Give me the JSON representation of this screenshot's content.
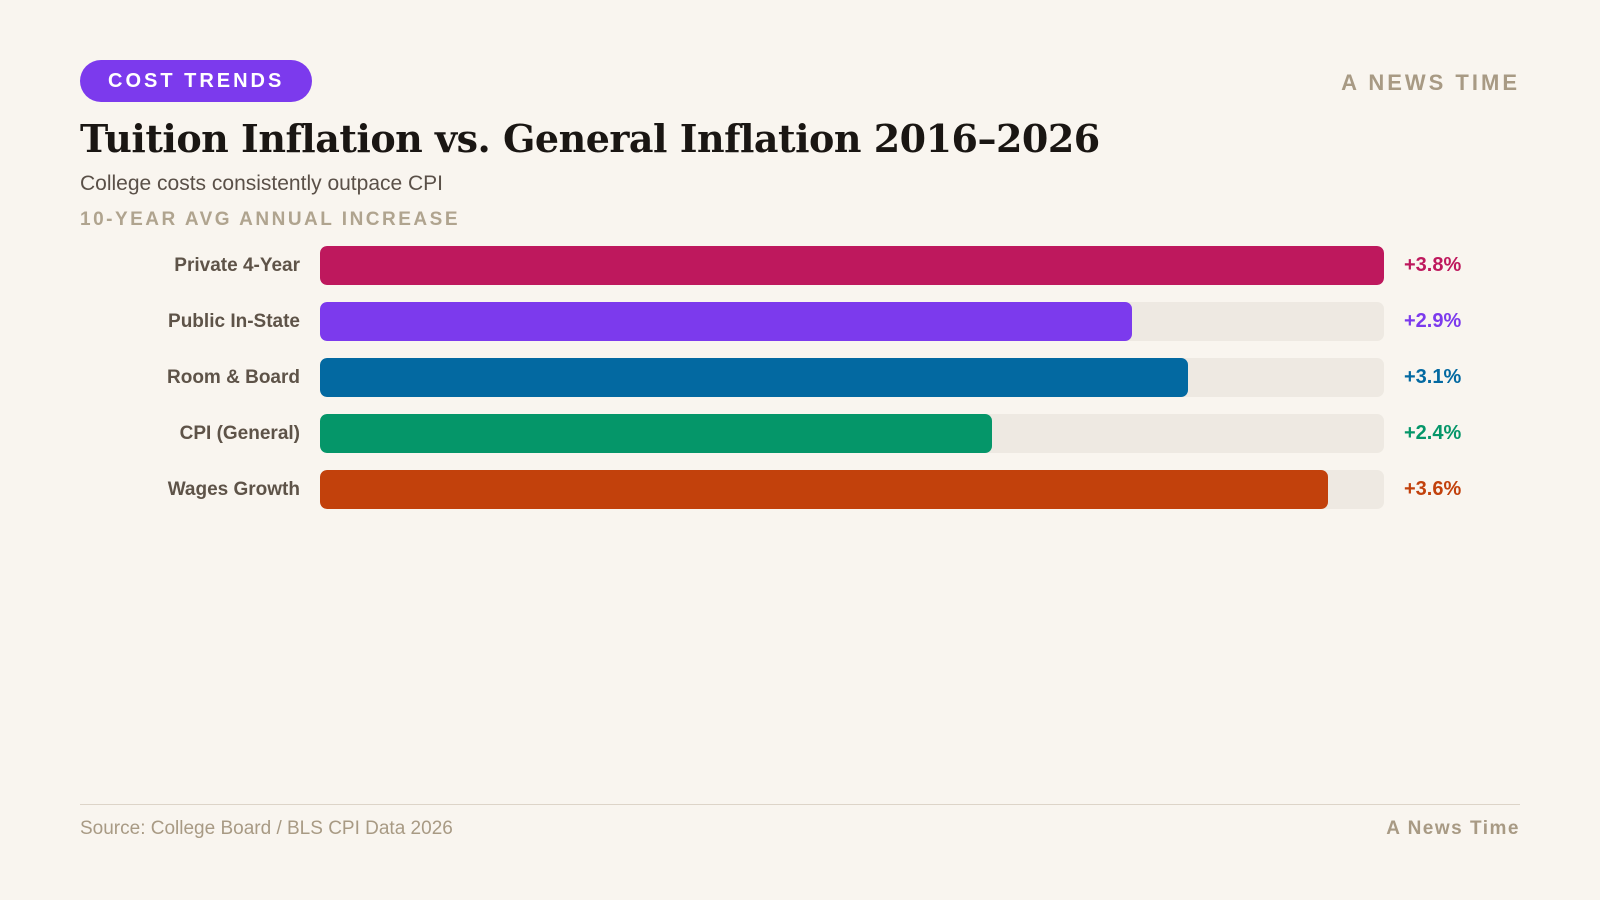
{
  "header": {
    "badge": "COST TRENDS",
    "brand": "A NEWS TIME",
    "title": "Tuition Inflation vs. General Inflation 2016–2026",
    "subtitle": "College costs consistently outpace CPI",
    "section_label": "10-YEAR AVG ANNUAL INCREASE"
  },
  "footer": {
    "source": "Source: College Board / BLS CPI Data 2026",
    "brand": "A News Time"
  },
  "colors": {
    "badge_bg": "#7c3aed",
    "track": "#eee9e2"
  },
  "chart_data": {
    "type": "bar",
    "orientation": "horizontal",
    "categories": [
      "Private 4-Year",
      "Public In-State",
      "Room & Board",
      "CPI (General)",
      "Wages Growth"
    ],
    "values": [
      3.8,
      2.9,
      3.1,
      2.4,
      3.6
    ],
    "value_labels": [
      "+3.8%",
      "+2.9%",
      "+3.1%",
      "+2.4%",
      "+3.6%"
    ],
    "colors": [
      "#be185d",
      "#7c3aed",
      "#0369a1",
      "#059669",
      "#c2410c"
    ],
    "xlim": [
      0,
      3.8
    ],
    "grid": false,
    "legend": "none"
  }
}
